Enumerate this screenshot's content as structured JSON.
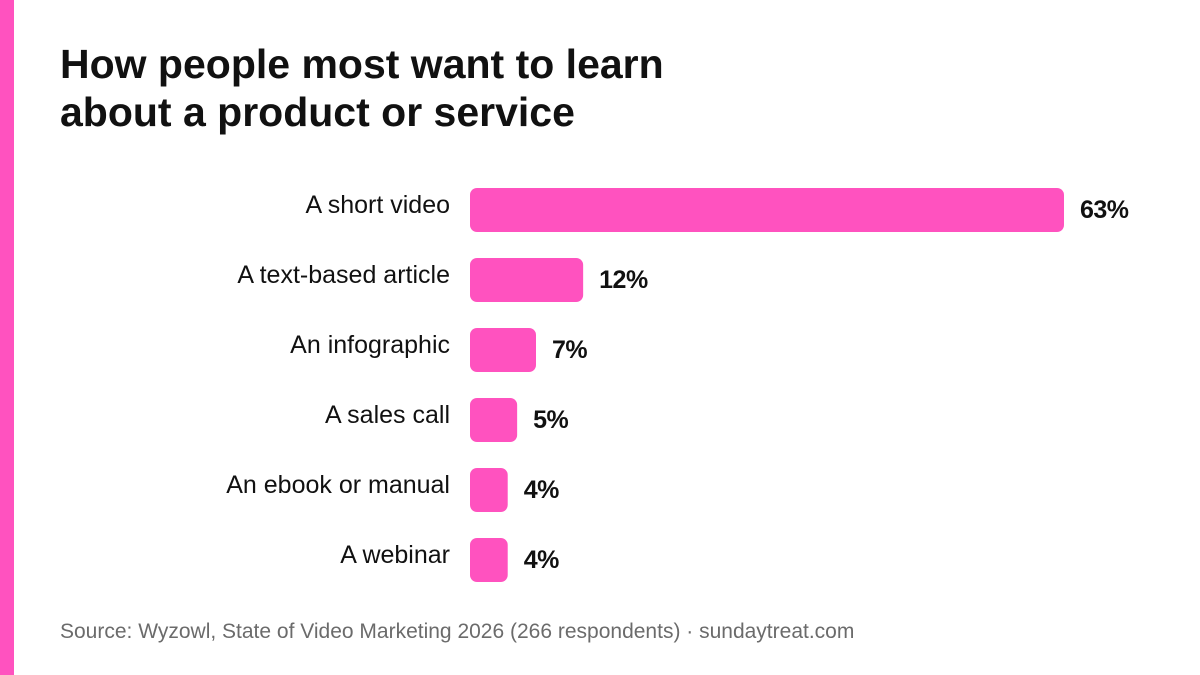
{
  "page": {
    "title_line1": "How people most want to learn",
    "title_line2": "about a product or service",
    "source": "Source: Wyzowl, State of Video Marketing 2026 (266 respondents) · sundaytreat.com",
    "accent_color": "#ff52bf"
  },
  "chart_data": {
    "type": "bar",
    "orientation": "horizontal",
    "title": "How people most want to learn about a product or service",
    "categories": [
      "A short video",
      "A text-based article",
      "An infographic",
      "A sales call",
      "An ebook or manual",
      "A webinar"
    ],
    "values": [
      63,
      12,
      7,
      5,
      4,
      4
    ],
    "value_labels": [
      "63%",
      "12%",
      "7%",
      "5%",
      "4%",
      "4%"
    ],
    "xlim": [
      0,
      63
    ],
    "bar_color": "#ff52bf",
    "grid": false,
    "legend": "none"
  }
}
